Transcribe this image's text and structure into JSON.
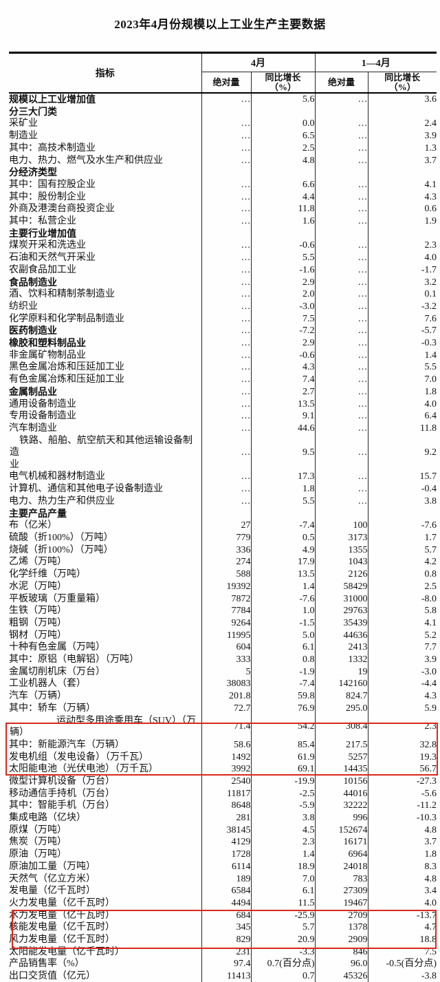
{
  "title": "2023年4月份规模以上工业生产主要数据",
  "annotations": {
    "highlight_color": "#d8281a"
  },
  "table": {
    "header": {
      "indicator": "指标",
      "april": "4月",
      "jan_apr": "1—4月",
      "absolute": "绝对量",
      "yoy": "同比增长\n（%）"
    },
    "rows": [
      {
        "t": "规模以上工业增加值",
        "ind": 0,
        "bold": true,
        "v": [
          "…",
          "5.6",
          "…",
          "3.6"
        ]
      },
      {
        "t": "分三大门类",
        "ind": 0,
        "bold": true,
        "v": [
          "",
          "",
          "",
          ""
        ]
      },
      {
        "t": "采矿业",
        "ind": 1,
        "v": [
          "…",
          "0.0",
          "…",
          "2.4"
        ]
      },
      {
        "t": "制造业",
        "ind": 1,
        "v": [
          "…",
          "6.5",
          "…",
          "3.9"
        ]
      },
      {
        "t": "其中：高技术制造业",
        "ind": 2,
        "v": [
          "…",
          "2.5",
          "…",
          "1.3"
        ]
      },
      {
        "t": "电力、热力、燃气及水生产和供应业",
        "ind": 1,
        "v": [
          "…",
          "4.8",
          "…",
          "3.7"
        ]
      },
      {
        "t": "分经济类型",
        "ind": 0,
        "bold": true,
        "v": [
          "",
          "",
          "",
          ""
        ]
      },
      {
        "t": "其中：国有控股企业",
        "ind": 1,
        "v": [
          "…",
          "6.6",
          "…",
          "4.1"
        ]
      },
      {
        "t": "其中：股份制企业",
        "ind": 1,
        "v": [
          "…",
          "4.4",
          "…",
          "4.3"
        ]
      },
      {
        "t": "外商及港澳台商投资企业",
        "ind": 3,
        "v": [
          "…",
          "11.8",
          "…",
          "0.6"
        ]
      },
      {
        "t": "其中：私营企业",
        "ind": 1,
        "v": [
          "…",
          "1.6",
          "…",
          "1.9"
        ]
      },
      {
        "t": "主要行业增加值",
        "ind": 0,
        "bold": true,
        "v": [
          "",
          "",
          "",
          ""
        ]
      },
      {
        "t": "煤炭开采和洗选业",
        "ind": 1,
        "v": [
          "…",
          "-0.6",
          "…",
          "2.3"
        ]
      },
      {
        "t": "石油和天然气开采业",
        "ind": 1,
        "v": [
          "…",
          "5.5",
          "…",
          "4.0"
        ]
      },
      {
        "t": "农副食品加工业",
        "ind": 1,
        "v": [
          "…",
          "-1.6",
          "…",
          "-1.7"
        ]
      },
      {
        "t": "食品制造业",
        "ind": 1,
        "bold": true,
        "v": [
          "…",
          "2.9",
          "…",
          "3.2"
        ]
      },
      {
        "t": "酒、饮料和精制茶制造业",
        "ind": 1,
        "v": [
          "…",
          "2.0",
          "…",
          "0.1"
        ]
      },
      {
        "t": "纺织业",
        "ind": 1,
        "v": [
          "…",
          "-3.0",
          "…",
          "-3.2"
        ]
      },
      {
        "t": "化学原料和化学制品制造业",
        "ind": 1,
        "v": [
          "…",
          "7.5",
          "…",
          "7.6"
        ]
      },
      {
        "t": "医药制造业",
        "ind": 1,
        "bold": true,
        "v": [
          "…",
          "-7.2",
          "…",
          "-5.7"
        ]
      },
      {
        "t": "橡胶和塑料制品业",
        "ind": 1,
        "bold": true,
        "v": [
          "…",
          "2.9",
          "…",
          "-0.3"
        ]
      },
      {
        "t": "非金属矿物制品业",
        "ind": 1,
        "v": [
          "…",
          "-0.6",
          "…",
          "1.4"
        ]
      },
      {
        "t": "黑色金属冶炼和压延加工业",
        "ind": 1,
        "v": [
          "…",
          "4.3",
          "…",
          "5.5"
        ]
      },
      {
        "t": "有色金属冶炼和压延加工业",
        "ind": 1,
        "v": [
          "…",
          "7.4",
          "…",
          "7.0"
        ]
      },
      {
        "t": "金属制品业",
        "ind": 1,
        "bold": true,
        "v": [
          "…",
          "2.7",
          "…",
          "1.8"
        ]
      },
      {
        "t": "通用设备制造业",
        "ind": 1,
        "v": [
          "…",
          "13.5",
          "…",
          "4.0"
        ]
      },
      {
        "t": "专用设备制造业",
        "ind": 1,
        "v": [
          "…",
          "9.1",
          "…",
          "6.4"
        ]
      },
      {
        "t": "汽车制造业",
        "ind": 1,
        "v": [
          "…",
          "44.6",
          "…",
          "11.8"
        ]
      },
      {
        "t": "铁路、船舶、航空航天和其他运输设备制造\n业",
        "ind": 1,
        "wrap": true,
        "v": [
          "…",
          "9.5",
          "…",
          "9.2"
        ]
      },
      {
        "t": "电气机械和器材制造业",
        "ind": 1,
        "v": [
          "…",
          "17.3",
          "…",
          "15.7"
        ]
      },
      {
        "t": "计算机、通信和其他电子设备制造业",
        "ind": 1,
        "v": [
          "…",
          "1.8",
          "…",
          "-0.4"
        ]
      },
      {
        "t": "电力、热力生产和供应业",
        "ind": 1,
        "v": [
          "…",
          "5.5",
          "…",
          "3.8"
        ]
      },
      {
        "t": "主要产品产量",
        "ind": 0,
        "bold": true,
        "v": [
          "",
          "",
          "",
          ""
        ]
      },
      {
        "t": "布（亿米）",
        "ind": 1,
        "v": [
          "27",
          "-7.4",
          "100",
          "-7.6"
        ]
      },
      {
        "t": "硫酸（折100%）（万吨）",
        "ind": 1,
        "v": [
          "779",
          "0.5",
          "3173",
          "1.7"
        ]
      },
      {
        "t": "烧碱（折100%）（万吨）",
        "ind": 1,
        "v": [
          "336",
          "4.9",
          "1355",
          "5.7"
        ]
      },
      {
        "t": "乙烯（万吨）",
        "ind": 1,
        "v": [
          "274",
          "17.9",
          "1043",
          "4.2"
        ]
      },
      {
        "t": "化学纤维（万吨）",
        "ind": 1,
        "v": [
          "588",
          "13.5",
          "2126",
          "0.8"
        ]
      },
      {
        "t": "水泥（万吨）",
        "ind": 1,
        "v": [
          "19392",
          "1.4",
          "58429",
          "2.5"
        ]
      },
      {
        "t": "平板玻璃（万重量箱）",
        "ind": 1,
        "v": [
          "7872",
          "-7.6",
          "31000",
          "-8.0"
        ]
      },
      {
        "t": "生铁（万吨）",
        "ind": 1,
        "v": [
          "7784",
          "1.0",
          "29763",
          "5.8"
        ]
      },
      {
        "t": "粗钢（万吨）",
        "ind": 1,
        "v": [
          "9264",
          "-1.5",
          "35439",
          "4.1"
        ]
      },
      {
        "t": "钢材（万吨）",
        "ind": 1,
        "v": [
          "11995",
          "5.0",
          "44636",
          "5.2"
        ]
      },
      {
        "t": "十种有色金属（万吨）",
        "ind": 1,
        "v": [
          "604",
          "6.1",
          "2413",
          "7.7"
        ]
      },
      {
        "t": "其中：原铝（电解铝）（万吨）",
        "ind": 2,
        "v": [
          "333",
          "0.8",
          "1332",
          "3.9"
        ]
      },
      {
        "t": "金属切削机床（万台）",
        "ind": 1,
        "v": [
          "5",
          "-1.9",
          "19",
          "-3.0"
        ]
      },
      {
        "t": "工业机器人（套）",
        "ind": 1,
        "v": [
          "38083",
          "-7.4",
          "142160",
          "-4.4"
        ]
      },
      {
        "t": "汽车（万辆）",
        "ind": 1,
        "v": [
          "201.8",
          "59.8",
          "824.7",
          "4.3"
        ]
      },
      {
        "t": "其中：轿车（万辆）",
        "ind": 2,
        "v": [
          "72.7",
          "76.9",
          "295.0",
          "5.9"
        ]
      },
      {
        "t": "运动型多用途乘用车（SUV）（万\n辆）",
        "ind": 4,
        "wrap": true,
        "v": [
          "71.4",
          "54.2",
          "308.4",
          "2.3"
        ]
      },
      {
        "t": "其中：新能源汽车（万辆）",
        "ind": 2,
        "v": [
          "58.6",
          "85.4",
          "217.5",
          "32.8"
        ]
      },
      {
        "t": "发电机组（发电设备）（万千瓦）",
        "ind": 1,
        "v": [
          "1492",
          "61.9",
          "5257",
          "19.3"
        ]
      },
      {
        "t": "太阳能电池（光伏电池）（万千瓦）",
        "ind": 1,
        "v": [
          "3992",
          "69.1",
          "14435",
          "56.7"
        ]
      },
      {
        "t": "微型计算机设备（万台）",
        "ind": 1,
        "v": [
          "2540",
          "-19.9",
          "10156",
          "-27.3"
        ]
      },
      {
        "t": "移动通信手持机（万台）",
        "ind": 1,
        "v": [
          "11817",
          "-2.5",
          "44016",
          "-5.6"
        ]
      },
      {
        "t": "其中：智能手机（万台）",
        "ind": 2,
        "v": [
          "8648",
          "-5.9",
          "32222",
          "-11.2"
        ]
      },
      {
        "t": "集成电路（亿块）",
        "ind": 1,
        "v": [
          "281",
          "3.8",
          "996",
          "-10.3"
        ]
      },
      {
        "t": "原煤（万吨）",
        "ind": 1,
        "v": [
          "38145",
          "4.5",
          "152674",
          "4.8"
        ]
      },
      {
        "t": "焦炭（万吨）",
        "ind": 1,
        "v": [
          "4129",
          "2.3",
          "16171",
          "3.7"
        ]
      },
      {
        "t": "原油（万吨）",
        "ind": 1,
        "v": [
          "1728",
          "1.4",
          "6964",
          "1.8"
        ]
      },
      {
        "t": "原油加工量（万吨）",
        "ind": 1,
        "v": [
          "6114",
          "18.9",
          "24018",
          "8.3"
        ]
      },
      {
        "t": "天然气（亿立方米）",
        "ind": 1,
        "v": [
          "189",
          "7.0",
          "783",
          "4.8"
        ]
      },
      {
        "t": "发电量（亿千瓦时）",
        "ind": 1,
        "v": [
          "6584",
          "6.1",
          "27309",
          "3.4"
        ]
      },
      {
        "t": "火力发电量（亿千瓦时）",
        "ind": 2,
        "v": [
          "4494",
          "11.5",
          "19467",
          "4.0"
        ]
      },
      {
        "t": "水力发电量（亿千瓦时）",
        "ind": 2,
        "v": [
          "684",
          "-25.9",
          "2709",
          "-13.7"
        ]
      },
      {
        "t": "核能发电量（亿千瓦时）",
        "ind": 2,
        "v": [
          "345",
          "5.7",
          "1378",
          "4.7"
        ]
      },
      {
        "t": "风力发电量（亿千瓦时）",
        "ind": 2,
        "v": [
          "829",
          "20.9",
          "2909",
          "18.8"
        ]
      },
      {
        "t": "太阳能发电量（亿千瓦时）",
        "ind": 2,
        "v": [
          "231",
          "-3.3",
          "846",
          "7.5"
        ]
      },
      {
        "t": "产品销售率（%）",
        "ind": 1,
        "v": [
          "97.4",
          "0.7(百分点)",
          "96.0",
          "-0.5(百分点)"
        ]
      },
      {
        "t": "出口交货值（亿元）",
        "ind": 1,
        "v": [
          "11413",
          "0.7",
          "45326",
          "-3.8"
        ]
      }
    ]
  }
}
